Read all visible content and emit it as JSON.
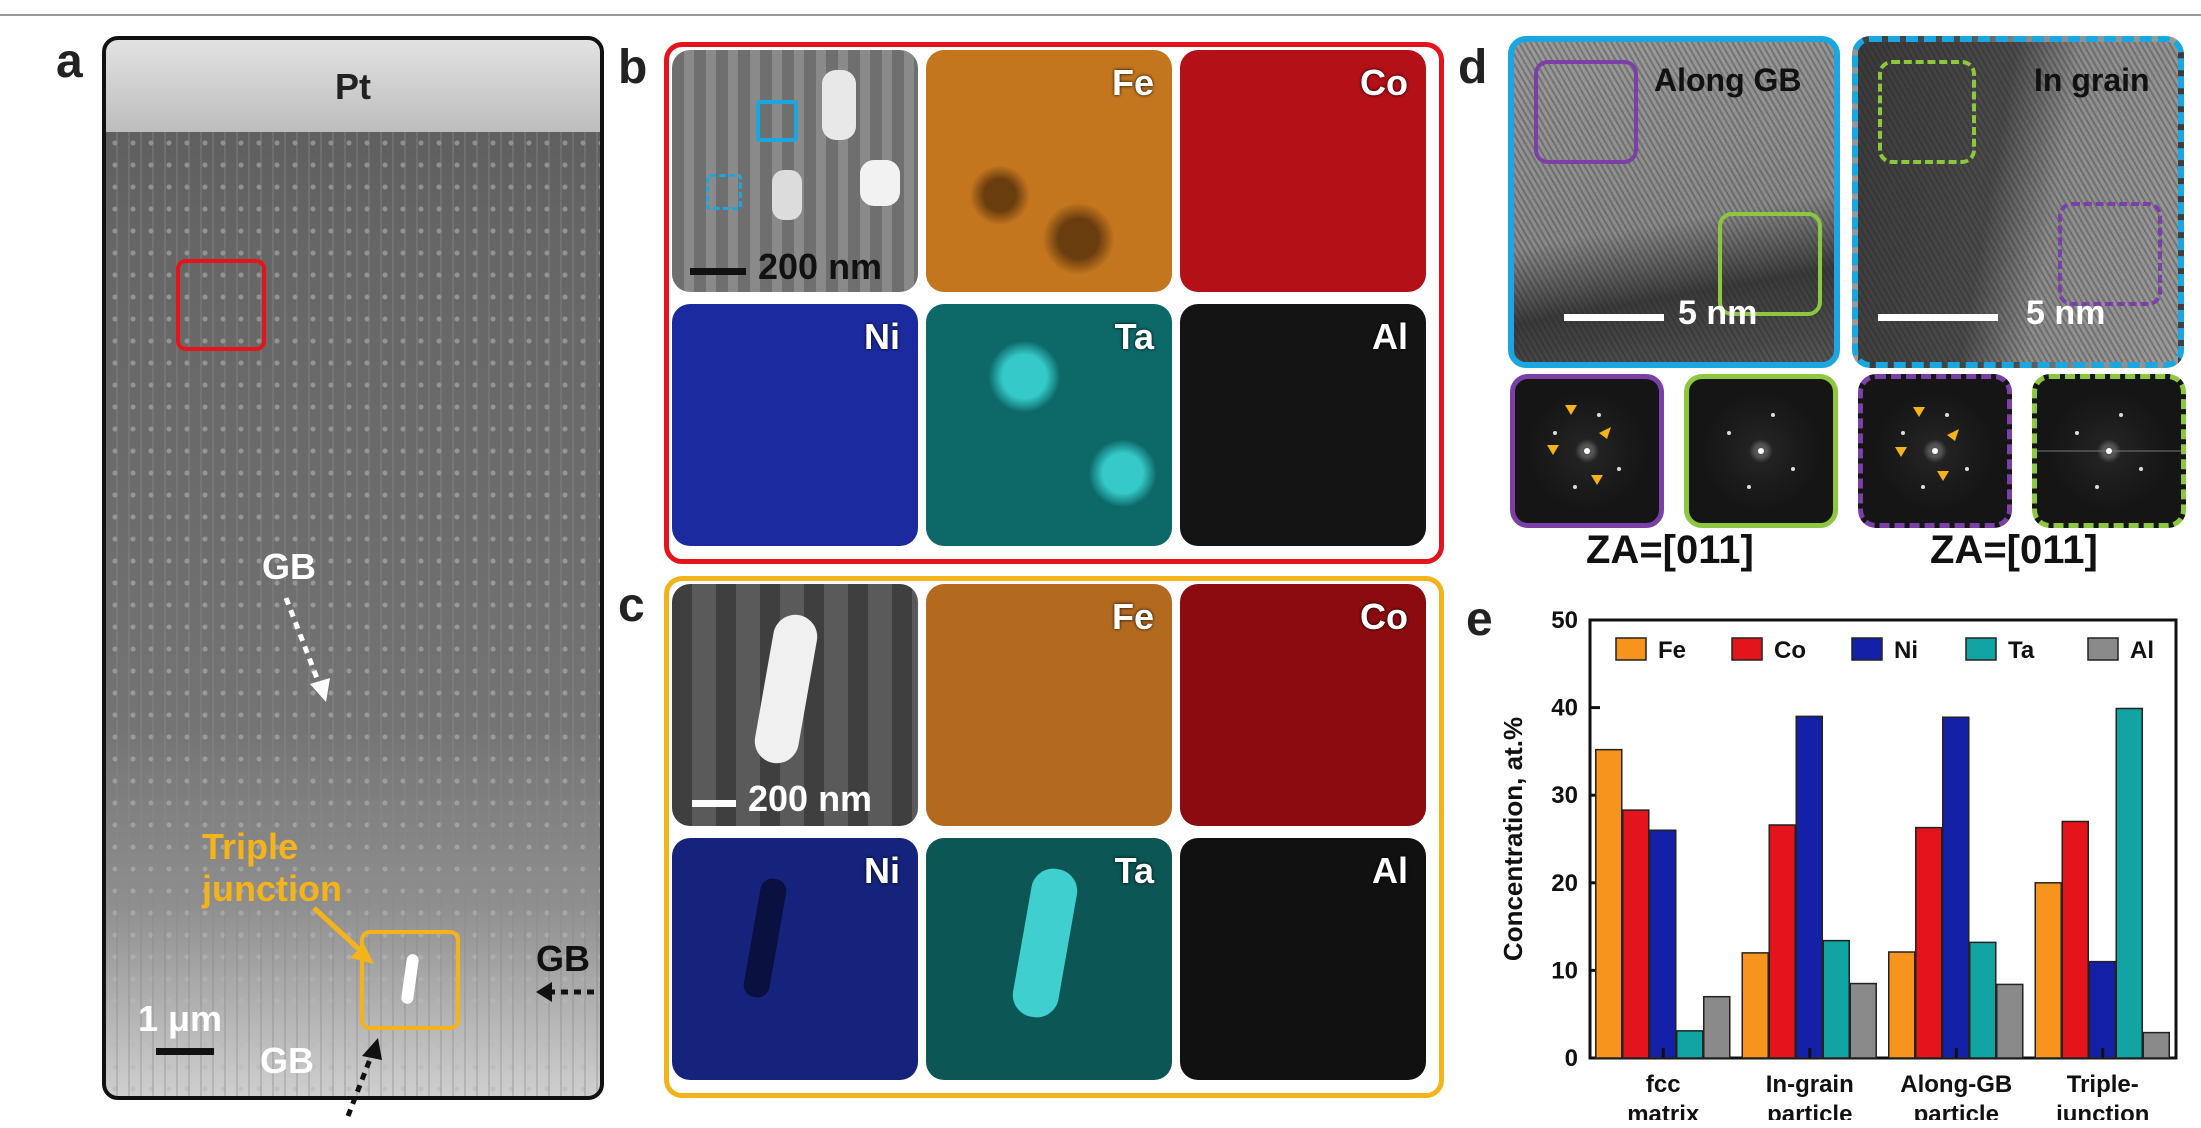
{
  "panels": {
    "a": {
      "label": "a",
      "pt_label": "Pt",
      "gb_upper": "GB",
      "gb_lower": "GB",
      "gb_right": "GB",
      "triple_junction_line1": "Triple",
      "triple_junction_line2": "junction",
      "scale_bar": "1 μm",
      "colors": {
        "red_box": "#e3141b",
        "yellow_box": "#f5b31a"
      }
    },
    "b": {
      "label": "b",
      "scale_bar": "200 nm",
      "elements": [
        "Fe",
        "Co",
        "Ni",
        "Ta",
        "Al"
      ],
      "frame_color": "#e3141b"
    },
    "c": {
      "label": "c",
      "scale_bar": "200 nm",
      "elements": [
        "Fe",
        "Co",
        "Ni",
        "Ta",
        "Al"
      ],
      "frame_color": "#f5b31a"
    },
    "d": {
      "label": "d",
      "along_gb": "Along GB",
      "in_grain": "In grain",
      "scale_left": "5 nm",
      "scale_right": "5 nm",
      "za_left": "ZA=[011]",
      "za_right": "ZA=[011]",
      "colors": {
        "frame": "#1aa7e0",
        "purple": "#7b3fa8",
        "green": "#8dc63f",
        "arrow": "#f5b31a"
      }
    },
    "e": {
      "label": "e"
    }
  },
  "element_colors": {
    "Fe": "#f7941d",
    "Co": "#e3141b",
    "Ni": "#1420a8",
    "Ta": "#12a3a3",
    "Al": "#8a8a8a"
  },
  "chart_data": {
    "type": "bar",
    "categories": [
      [
        "fcc",
        "matrix"
      ],
      [
        "In-grain",
        "particle"
      ],
      [
        "Along-GB",
        "particle"
      ],
      [
        "Triple-",
        "junction"
      ]
    ],
    "series": [
      {
        "name": "Fe",
        "values": [
          35.2,
          12.0,
          12.1,
          20.0
        ]
      },
      {
        "name": "Co",
        "values": [
          28.3,
          26.6,
          26.3,
          27.0
        ]
      },
      {
        "name": "Ni",
        "values": [
          26.0,
          39.0,
          38.9,
          11.0
        ]
      },
      {
        "name": "Ta",
        "values": [
          3.1,
          13.4,
          13.2,
          39.9
        ]
      },
      {
        "name": "Al",
        "values": [
          7.0,
          8.5,
          8.4,
          2.9
        ]
      }
    ],
    "ylabel": "Concentration, at.%",
    "ylim": [
      0,
      50
    ],
    "yticks": [
      0,
      10,
      20,
      30,
      40,
      50
    ],
    "legend": "top"
  }
}
